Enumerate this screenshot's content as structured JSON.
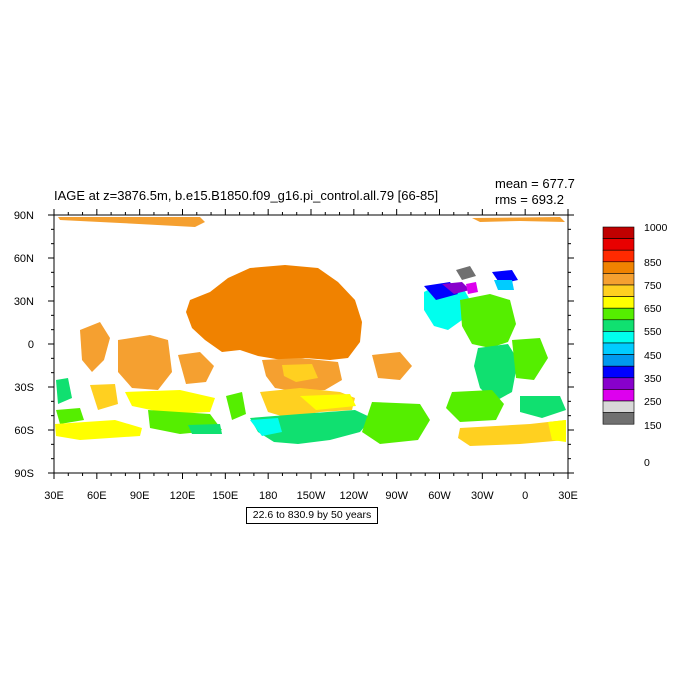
{
  "title": "IAGE at z=3876.5m, b.e15.B1850.f09_g16.pi_control.all.79 [66-85]",
  "stats": {
    "mean": "mean = 677.7",
    "rms": "rms = 693.2"
  },
  "contour_info": "22.6 to 830.9 by 50 years",
  "axes": {
    "x_ticks": [
      "30E",
      "60E",
      "90E",
      "120E",
      "150E",
      "180",
      "150W",
      "120W",
      "90W",
      "60W",
      "30W",
      "0",
      "30E"
    ],
    "y_ticks": [
      "90N",
      "60N",
      "30N",
      "0",
      "30S",
      "60S",
      "90S"
    ]
  },
  "colorbar": {
    "labels": [
      "1000",
      "850",
      "750",
      "650",
      "550",
      "450",
      "350",
      "250",
      "150",
      "0"
    ],
    "colors": [
      "#c00000",
      "#e80000",
      "#ff2a00",
      "#f08200",
      "#f5a030",
      "#ffd020",
      "#ffff00",
      "#55ee00",
      "#10e070",
      "#00ffee",
      "#00ccff",
      "#0099ee",
      "#0000ff",
      "#8800cc",
      "#dd00ee",
      "#d8d8d8",
      "#707070"
    ]
  },
  "palette": {
    "orange": "#f08200",
    "light_orange": "#f5a030",
    "gold": "#ffd020",
    "yellow": "#ffff00",
    "green": "#55ee00",
    "sea_green": "#10e070",
    "cyan": "#00ffee",
    "sky": "#00ccff",
    "blue": "#0000ff",
    "purple": "#8800cc",
    "magenta": "#dd00ee",
    "grey": "#707070"
  }
}
